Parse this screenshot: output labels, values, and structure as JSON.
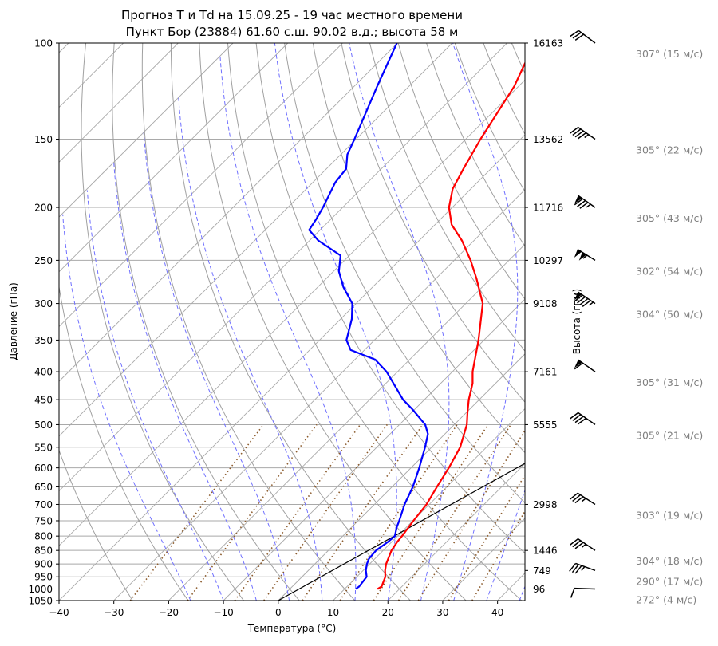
{
  "title": {
    "line1": "Прогноз T и Td на 15.09.25 - 19 час местного времени",
    "line2": "Пункт Бор (23884) 61.60 с.ш. 90.02 в.д.; высота 58 м"
  },
  "colors": {
    "temperature": "#ff0000",
    "dewpoint": "#0000ff",
    "isobar_grid": "#a9a9a9",
    "dry_adiabat": "#a0a0a0",
    "moist_adiabat": "#6f6fff",
    "mixing_ratio": "#8b5a2b",
    "parcel": "#000000",
    "wind_label": "#808080"
  },
  "chart_data": {
    "type": "line",
    "subtype": "skew-T log-P diagram",
    "xlabel": "Температура (°C)",
    "ylabel": "Давление (гПа)",
    "y2label": "Высота (гпм)",
    "xlim": [
      -40,
      45
    ],
    "ylim": [
      1050,
      100
    ],
    "y_scale": "log",
    "grid": true,
    "x_ticks": [
      "−40",
      "−30",
      "−20",
      "−10",
      "0",
      "10",
      "20",
      "30",
      "40"
    ],
    "x_tick_values": [
      -40,
      -30,
      -20,
      -10,
      0,
      10,
      20,
      30,
      40
    ],
    "y_ticks": [
      "100",
      "150",
      "200",
      "250",
      "300",
      "350",
      "400",
      "450",
      "500",
      "550",
      "600",
      "650",
      "700",
      "750",
      "800",
      "850",
      "900",
      "950",
      "1000",
      "1050"
    ],
    "y_tick_values": [
      100,
      150,
      200,
      250,
      300,
      350,
      400,
      450,
      500,
      550,
      600,
      650,
      700,
      750,
      800,
      850,
      900,
      950,
      1000,
      1050
    ],
    "heights": [
      {
        "p": 100,
        "label": "16163"
      },
      {
        "p": 150,
        "label": "13562"
      },
      {
        "p": 200,
        "label": "11716"
      },
      {
        "p": 250,
        "label": "10297"
      },
      {
        "p": 300,
        "label": "9108"
      },
      {
        "p": 400,
        "label": "7161"
      },
      {
        "p": 500,
        "label": "5555"
      },
      {
        "p": 700,
        "label": "2998"
      },
      {
        "p": 850,
        "label": "1446"
      },
      {
        "p": 925,
        "label": "749"
      },
      {
        "p": 1000,
        "label": "96"
      }
    ],
    "series": [
      {
        "key": "temperature",
        "points": [
          [
            1000,
            16.0
          ],
          [
            990,
            16.3
          ],
          [
            950,
            15.2
          ],
          [
            925,
            14.0
          ],
          [
            900,
            13.0
          ],
          [
            850,
            11.5
          ],
          [
            820,
            11.0
          ],
          [
            800,
            10.8
          ],
          [
            750,
            10.1
          ],
          [
            700,
            9.5
          ],
          [
            650,
            8.2
          ],
          [
            600,
            6.9
          ],
          [
            550,
            5.2
          ],
          [
            500,
            2.3
          ],
          [
            475,
            0.2
          ],
          [
            450,
            -1.9
          ],
          [
            420,
            -4.2
          ],
          [
            400,
            -6.3
          ],
          [
            350,
            -11.0
          ],
          [
            300,
            -16.9
          ],
          [
            270,
            -22.6
          ],
          [
            250,
            -27.0
          ],
          [
            230,
            -32.2
          ],
          [
            215,
            -37.0
          ],
          [
            200,
            -40.6
          ],
          [
            185,
            -43.3
          ],
          [
            170,
            -45.0
          ],
          [
            150,
            -47.3
          ],
          [
            120,
            -50.8
          ],
          [
            100,
            -55.0
          ]
        ]
      },
      {
        "key": "dewpoint",
        "points": [
          [
            1000,
            12.0
          ],
          [
            990,
            12.2
          ],
          [
            950,
            11.8
          ],
          [
            925,
            10.5
          ],
          [
            900,
            9.5
          ],
          [
            880,
            8.9
          ],
          [
            850,
            8.7
          ],
          [
            820,
            9.3
          ],
          [
            800,
            9.5
          ],
          [
            770,
            8.2
          ],
          [
            750,
            7.5
          ],
          [
            700,
            5.5
          ],
          [
            650,
            3.8
          ],
          [
            600,
            1.5
          ],
          [
            550,
            -1.2
          ],
          [
            520,
            -3.1
          ],
          [
            500,
            -5.3
          ],
          [
            470,
            -10.2
          ],
          [
            450,
            -13.9
          ],
          [
            400,
            -22.0
          ],
          [
            380,
            -26.3
          ],
          [
            365,
            -32.5
          ],
          [
            350,
            -35.1
          ],
          [
            320,
            -38.0
          ],
          [
            300,
            -40.7
          ],
          [
            280,
            -45.3
          ],
          [
            262,
            -49.0
          ],
          [
            245,
            -51.6
          ],
          [
            230,
            -58.4
          ],
          [
            220,
            -62.0
          ],
          [
            210,
            -62.7
          ],
          [
            200,
            -63.6
          ],
          [
            180,
            -65.9
          ],
          [
            170,
            -66.4
          ],
          [
            160,
            -68.8
          ],
          [
            150,
            -70.3
          ],
          [
            120,
            -75.8
          ],
          [
            100,
            -80.1
          ]
        ]
      }
    ],
    "winds": [
      {
        "p": 100,
        "dir": 307,
        "speed_ms": 15,
        "label": "307° (15 м/с)"
      },
      {
        "p": 150,
        "dir": 305,
        "speed_ms": 22,
        "label": "305° (22 м/с)"
      },
      {
        "p": 200,
        "dir": 305,
        "speed_ms": 43,
        "label": "305° (43 м/с)"
      },
      {
        "p": 250,
        "dir": 302,
        "speed_ms": 54,
        "label": "302° (54 м/с)"
      },
      {
        "p": 300,
        "dir": 304,
        "speed_ms": 50,
        "label": "304° (50 м/с)"
      },
      {
        "p": 400,
        "dir": 305,
        "speed_ms": 31,
        "label": "305° (31 м/с)"
      },
      {
        "p": 500,
        "dir": 305,
        "speed_ms": 21,
        "label": "305° (21 м/с)"
      },
      {
        "p": 700,
        "dir": 303,
        "speed_ms": 19,
        "label": "303° (19 м/с)"
      },
      {
        "p": 850,
        "dir": 304,
        "speed_ms": 18,
        "label": "304° (18 м/с)"
      },
      {
        "p": 925,
        "dir": 290,
        "speed_ms": 17,
        "label": "290° (17 м/с)"
      },
      {
        "p": 1000,
        "dir": 272,
        "speed_ms": 4,
        "label": "272° (4 м/с)"
      }
    ],
    "parcel_line": {
      "start_p": 1050,
      "start_T": 0,
      "end_p": 370,
      "end_T": 36
    }
  }
}
